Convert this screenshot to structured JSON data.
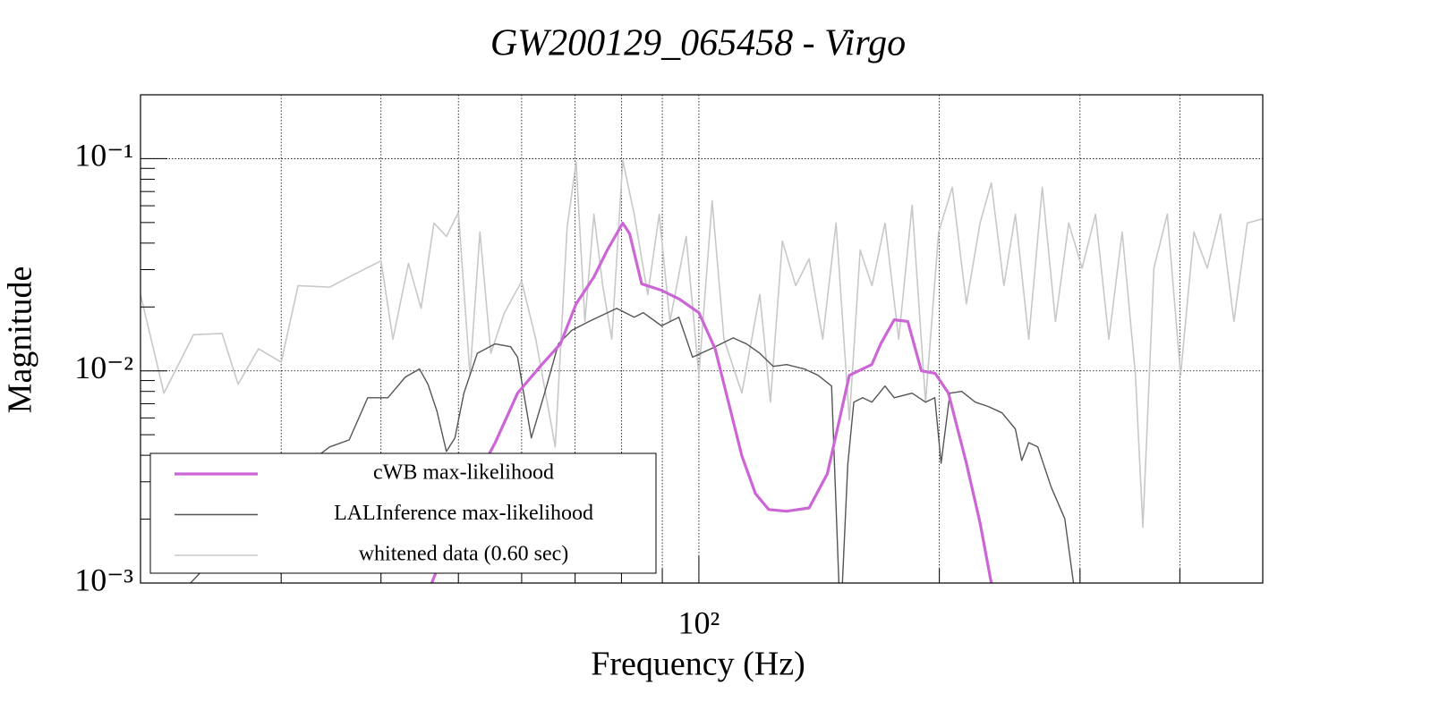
{
  "chart_data": {
    "type": "line",
    "title": "GW200129_065458 - Virgo",
    "x_label": "Frequency (Hz)",
    "y_label": "Magnitude",
    "x_log": true,
    "y_log": true,
    "grid": true,
    "legend": "lower left",
    "xlim": [
      20,
      508
    ],
    "ylim": [
      0.001,
      0.2
    ],
    "xticks": [
      {
        "value": 100,
        "label": "10²"
      }
    ],
    "xminor": [
      30,
      40,
      50,
      60,
      70,
      80,
      90,
      200,
      300,
      400
    ],
    "yticks": [
      {
        "value": 0.001,
        "label": "10⁻³"
      },
      {
        "value": 0.01,
        "label": "10⁻²"
      },
      {
        "value": 0.1,
        "label": "10⁻¹"
      }
    ],
    "series": [
      {
        "name": "whitened data (0.60 sec)",
        "color": "#c8c8c8",
        "x": [
          20,
          21.4,
          23.3,
          25.3,
          26.5,
          28.1,
          30.0,
          31.5,
          34.5,
          36.5,
          40,
          41.4,
          43.3,
          44.9,
          46.6,
          48.3,
          50,
          51.7,
          53.2,
          54.9,
          57.1,
          60,
          62.5,
          66.1,
          68.4,
          70.2,
          72.0,
          73.9,
          75.8,
          77.8,
          80.3,
          83.0,
          86.3,
          89.2,
          92.0,
          96.4,
          100,
          103.9,
          107.5,
          113.2,
          119.2,
          122.9,
          127.2,
          132.2,
          137.4,
          142.9,
          148.5,
          154.3,
          159.2,
          164.7,
          171.0,
          177.9,
          184.9,
          192.2,
          199.6,
          207.6,
          216.2,
          224.9,
          232.3,
          240.9,
          249.0,
          258.8,
          269.1,
          279.5,
          290.4,
          301.8,
          313.7,
          326.0,
          338.8,
          352.0,
          359.6,
          371.2,
          385.8,
          400.9,
          416.6,
          432.9,
          449.8,
          467.5,
          485.8,
          508
        ],
        "values": [
          0.0229,
          0.00785,
          0.0148,
          0.015,
          0.00865,
          0.0127,
          0.011,
          0.0252,
          0.0248,
          0.0277,
          0.033,
          0.0141,
          0.0321,
          0.0197,
          0.0497,
          0.043,
          0.0558,
          0.00953,
          0.0451,
          0.0121,
          0.0188,
          0.0264,
          0.0141,
          0.00438,
          0.0473,
          0.0962,
          0.0171,
          0.0547,
          0.0252,
          0.0141,
          0.0981,
          0.0547,
          0.0229,
          0.0547,
          0.0171,
          0.043,
          0.00953,
          0.0634,
          0.0141,
          0.00785,
          0.0229,
          0.00712,
          0.0409,
          0.0252,
          0.0337,
          0.0141,
          0.0497,
          0.00586,
          0.0371,
          0.0252,
          0.0497,
          0.0141,
          0.0604,
          0.00712,
          0.0451,
          0.0733,
          0.0207,
          0.0497,
          0.0769,
          0.0252,
          0.0547,
          0.0141,
          0.0733,
          0.0171,
          0.0497,
          0.0305,
          0.0547,
          0.0141,
          0.0451,
          0.00953,
          0.00183,
          0.0305,
          0.0547,
          0.00953,
          0.0451,
          0.0305,
          0.0547,
          0.0171,
          0.0497,
          0.0521
        ]
      },
      {
        "name": "LALInference max-likelihood",
        "color": "#555555",
        "x": [
          23.1,
          31.1,
          34.5,
          36.5,
          38.5,
          40.8,
          42.9,
          44.7,
          45.8,
          47.0,
          48.3,
          49.5,
          50.8,
          52.8,
          55.6,
          58.1,
          59.3,
          61.7,
          64.1,
          66.7,
          69.3,
          72.9,
          78.9,
          83.0,
          85.2,
          89.8,
          94.4,
          98.2,
          103.5,
          110.4,
          114.7,
          119.2,
          123.9,
          128.8,
          135.6,
          141.0,
          146.6,
          150.4,
          153.6,
          156.3,
          160.3,
          164.7,
          171.0,
          175.6,
          184.9,
          192.2,
          197.4,
          201.0,
          206.2,
          213.3,
          221.8,
          230.5,
          239.6,
          249.0,
          253.6,
          258.8,
          265.6,
          276.1,
          287.1,
          294.4,
          298.4
        ],
        "values": [
          0.001,
          0.00327,
          0.00438,
          0.00473,
          0.00747,
          0.00747,
          0.00934,
          0.0102,
          0.00865,
          0.00646,
          0.00417,
          0.00483,
          0.00785,
          0.0121,
          0.0134,
          0.013,
          0.0116,
          0.00483,
          0.00785,
          0.0134,
          0.0155,
          0.0171,
          0.0197,
          0.0179,
          0.0188,
          0.0163,
          0.0179,
          0.0116,
          0.0127,
          0.0143,
          0.0134,
          0.0121,
          0.0105,
          0.0107,
          0.0102,
          0.00953,
          0.00848,
          0.000627,
          0.00361,
          0.00712,
          0.00747,
          0.00712,
          0.00848,
          0.00747,
          0.00785,
          0.00712,
          0.00747,
          0.00367,
          0.00785,
          0.008,
          0.00712,
          0.00678,
          0.00634,
          0.00532,
          0.00378,
          0.00459,
          0.00438,
          0.00283,
          0.00201,
          0.001,
          0.000627
        ]
      },
      {
        "name": "cWB max-likelihood",
        "color": "#cc66d6",
        "x": [
          46.3,
          50.8,
          55.6,
          59.3,
          63.3,
          67.1,
          70.2,
          73.9,
          76.8,
          80.3,
          81.9,
          84.8,
          89.7,
          94.5,
          100,
          104.8,
          108.9,
          113.2,
          117.7,
          122.3,
          128.8,
          137.4,
          144.8,
          154.3,
          164.6,
          168.9,
          175.6,
          182.6,
          189.9,
          197.6,
          205.3,
          216.2,
          224.9,
          232.3
        ],
        "values": [
          0.001,
          0.00244,
          0.00459,
          0.00785,
          0.0105,
          0.0134,
          0.0207,
          0.0277,
          0.0371,
          0.0497,
          0.0443,
          0.0257,
          0.024,
          0.0218,
          0.0188,
          0.0127,
          0.00712,
          0.00397,
          0.00264,
          0.00222,
          0.00218,
          0.00226,
          0.00327,
          0.00953,
          0.0107,
          0.0134,
          0.0174,
          0.0171,
          0.01,
          0.00973,
          0.00785,
          0.00367,
          0.00192,
          0.001
        ]
      }
    ]
  }
}
